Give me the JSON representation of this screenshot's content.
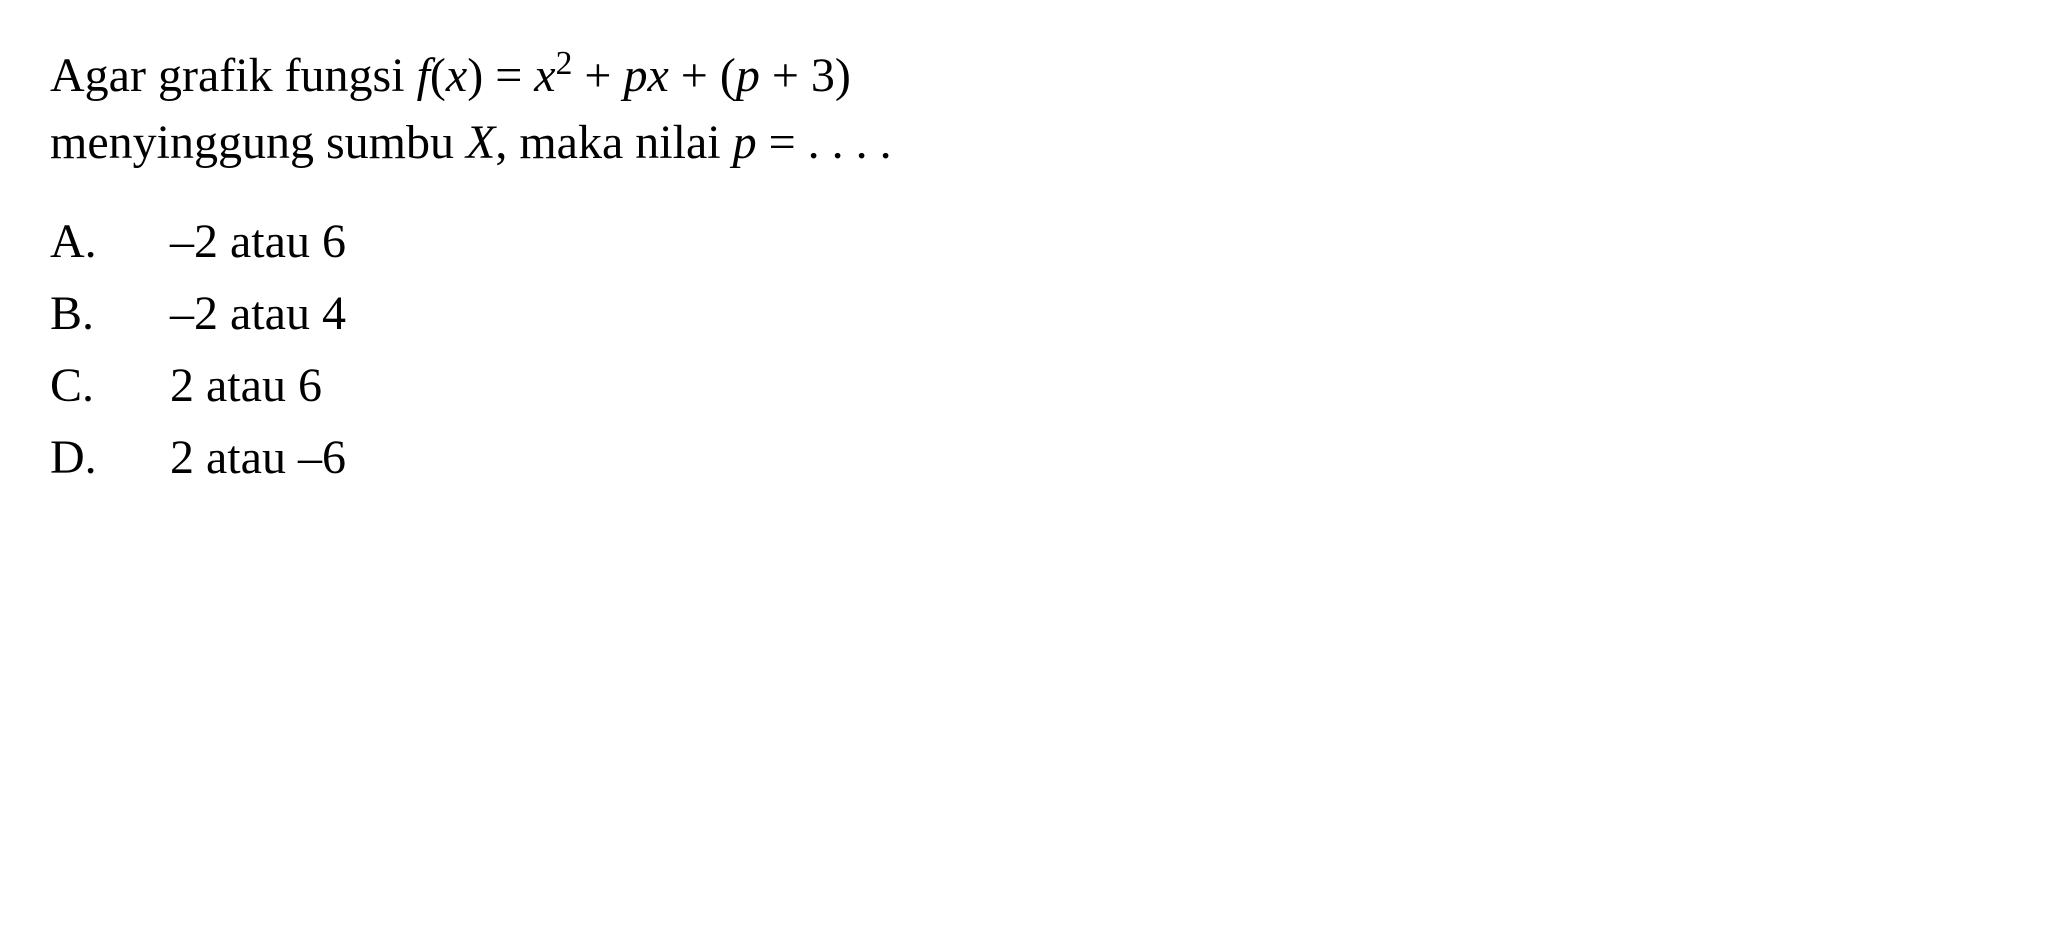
{
  "question": {
    "line1_part1": "Agar grafik fungsi ",
    "function_f": "f",
    "function_open": "(",
    "function_x": "x",
    "function_close": ") = ",
    "term_x": "x",
    "exponent": "2",
    "plus1": " + ",
    "term_p1": "p",
    "term_x2": "x",
    "plus2": " + (",
    "term_p2": "p",
    "plus3": " + 3)",
    "line2_part1": "menyinggung sumbu ",
    "axis_x": "X",
    "line2_part2": ", maka nilai ",
    "var_p": "p",
    "equals": " = . . . ."
  },
  "options": {
    "a": {
      "letter": "A.",
      "text": "–2 atau 6"
    },
    "b": {
      "letter": "B.",
      "text": "–2 atau 4"
    },
    "c": {
      "letter": "C.",
      "text": "2 atau 6"
    },
    "d": {
      "letter": "D.",
      "text": "2 atau –6"
    }
  },
  "styling": {
    "font_family": "Times New Roman",
    "font_size_pt": 36,
    "text_color": "#000000",
    "background_color": "#ffffff"
  }
}
